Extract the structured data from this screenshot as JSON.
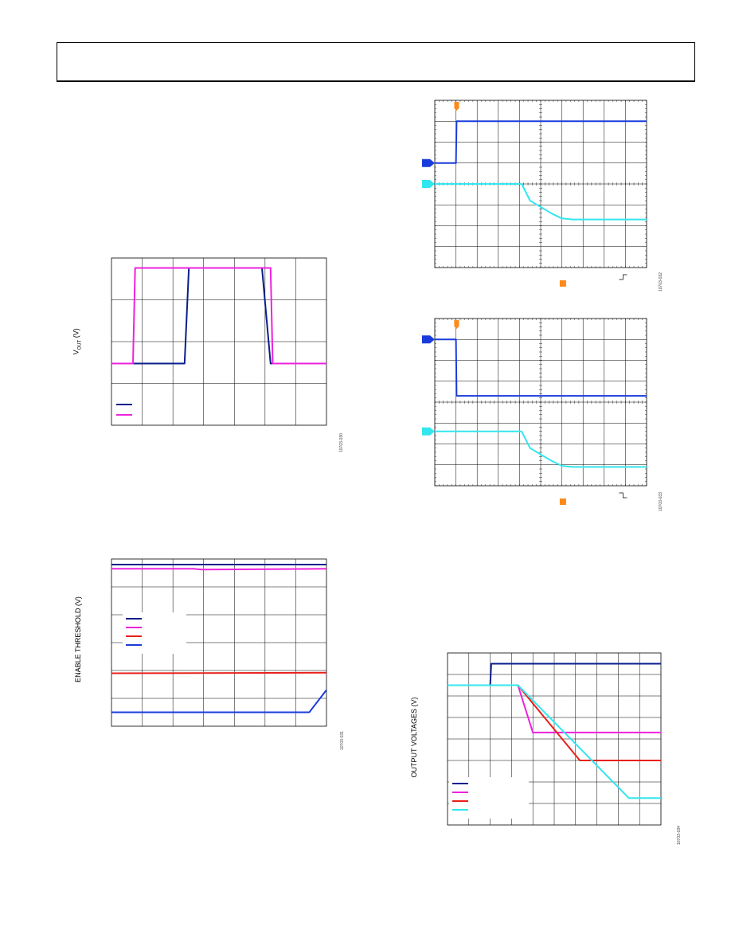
{
  "colors": {
    "navy": "#0a1e8c",
    "magenta": "#ee22dd",
    "red": "#e8201a",
    "cyan": "#33e6ee",
    "blue": "#1a3cdc",
    "orange": "#ff8a1a",
    "grid": "#000000"
  },
  "figure_ids": {
    "vout_enable": "10703-030",
    "enable_threshold": "10703-031",
    "scope_power_up": "10703-032",
    "scope_power_down": "10703-033",
    "output_voltages": "10703-034"
  },
  "chart_data": [
    {
      "id": "vout_enable",
      "type": "line",
      "ylabel_main": "V",
      "ylabel_sub": "OUT",
      "ylabel_unit": " (V)",
      "grid": true,
      "x_divisions": 7,
      "y_divisions": 4,
      "legend_placement": "bottom-left",
      "series": [
        {
          "color_key": "navy",
          "x": [
            0,
            0.34,
            0.36,
            0.7,
            0.74,
            1.0
          ],
          "y": [
            0.55,
            0.55,
            2.95,
            2.95,
            0.55,
            0.55
          ]
        },
        {
          "color_key": "magenta",
          "x": [
            0,
            0.1,
            0.11,
            0.74,
            0.75,
            1.0
          ],
          "y": [
            0.55,
            0.55,
            2.95,
            2.95,
            0.55,
            0.55
          ]
        }
      ],
      "x_range": [
        0,
        1
      ],
      "y_range": [
        -1,
        3.2
      ]
    },
    {
      "id": "enable_threshold",
      "type": "line",
      "ylabel": "ENABLE THRESHOLD (V)",
      "grid": true,
      "x_divisions": 7,
      "y_divisions": 6,
      "legend_placement": "center-left",
      "series": [
        {
          "color_key": "navy",
          "x": [
            0,
            1
          ],
          "y": [
            5.5,
            5.5
          ]
        },
        {
          "color_key": "magenta",
          "x": [
            0,
            0.38,
            0.42,
            1
          ],
          "y": [
            5.35,
            5.35,
            5.32,
            5.35
          ]
        },
        {
          "color_key": "red",
          "x": [
            0,
            1
          ],
          "y": [
            1.6,
            1.62
          ]
        },
        {
          "color_key": "blue",
          "x": [
            0,
            0.92,
            1
          ],
          "y": [
            0.2,
            0.2,
            1.0
          ]
        }
      ],
      "x_range": [
        0,
        1
      ],
      "y_range": [
        -0.3,
        5.7
      ]
    },
    {
      "id": "scope_power_up",
      "type": "line",
      "grid": true,
      "x_divisions": 10,
      "y_divisions": 8,
      "series": [
        {
          "color_key": "blue",
          "x": [
            0,
            0.1,
            0.103,
            1
          ],
          "y": [
            5,
            5,
            7,
            7
          ]
        },
        {
          "color_key": "cyan",
          "x": [
            0,
            0.41,
            0.45,
            0.55,
            0.6,
            0.65,
            1
          ],
          "y": [
            4,
            4,
            3.2,
            2.6,
            2.35,
            2.3,
            2.3
          ]
        }
      ],
      "x_range": [
        0,
        1
      ],
      "y_range": [
        0,
        8
      ],
      "trigger_level": 5.08,
      "ref_markers": [
        {
          "color_key": "blue",
          "y": 5
        },
        {
          "color_key": "cyan",
          "y": 4
        }
      ]
    },
    {
      "id": "scope_power_down",
      "type": "line",
      "grid": true,
      "x_divisions": 10,
      "y_divisions": 8,
      "series": [
        {
          "color_key": "blue",
          "x": [
            0,
            0.1,
            0.103,
            1
          ],
          "y": [
            7,
            7,
            4.3,
            4.3
          ]
        },
        {
          "color_key": "cyan",
          "x": [
            0,
            0.41,
            0.45,
            0.55,
            0.6,
            0.65,
            1
          ],
          "y": [
            2.6,
            2.6,
            1.8,
            1.2,
            0.95,
            0.9,
            0.9
          ]
        }
      ],
      "x_range": [
        0,
        1
      ],
      "y_range": [
        0,
        8
      ],
      "ref_markers": [
        {
          "color_key": "blue",
          "y": 7
        },
        {
          "color_key": "cyan",
          "y": 2.6
        }
      ]
    },
    {
      "id": "output_voltages",
      "type": "line",
      "ylabel": "OUTPUT VOLTAGES (V)",
      "grid": true,
      "x_divisions": 10,
      "y_divisions": 8,
      "legend_placement": "bottom-left",
      "series": [
        {
          "color_key": "navy",
          "x": [
            0,
            0.2,
            0.205,
            1
          ],
          "y": [
            6.5,
            6.5,
            7.5,
            7.5
          ]
        },
        {
          "color_key": "magenta",
          "x": [
            0,
            0.33,
            0.4,
            1
          ],
          "y": [
            6.5,
            6.5,
            4.3,
            4.3
          ]
        },
        {
          "color_key": "red",
          "x": [
            0,
            0.33,
            0.62,
            1
          ],
          "y": [
            6.5,
            6.5,
            3.0,
            3.0
          ]
        },
        {
          "color_key": "cyan",
          "x": [
            0,
            0.33,
            0.85,
            1
          ],
          "y": [
            6.5,
            6.5,
            1.25,
            1.25
          ]
        }
      ],
      "x_range": [
        0,
        1
      ],
      "y_range": [
        0,
        8
      ]
    }
  ]
}
